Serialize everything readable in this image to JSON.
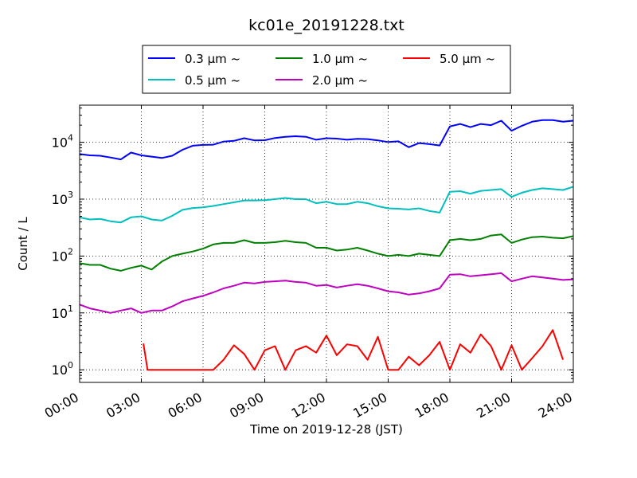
{
  "chart_data": {
    "type": "line",
    "title": "kc01e_20191228.txt",
    "xlabel": "Time on 2019-12-28 (JST)",
    "ylabel": "Count / L",
    "x_ticks": [
      "00:00",
      "03:00",
      "06:00",
      "09:00",
      "12:00",
      "15:00",
      "18:00",
      "21:00",
      "24:00"
    ],
    "xlim": [
      0,
      24
    ],
    "x_units": "hours",
    "y_scale": "log",
    "ylim": [
      0.6,
      45000
    ],
    "y_ticks": [
      {
        "value": 1,
        "base": "10",
        "exp": "0"
      },
      {
        "value": 10,
        "base": "10",
        "exp": "1"
      },
      {
        "value": 100,
        "base": "10",
        "exp": "2"
      },
      {
        "value": 1000,
        "base": "10",
        "exp": "3"
      },
      {
        "value": 10000,
        "base": "10",
        "exp": "4"
      }
    ],
    "grid": true,
    "legend_position": "top-center",
    "series": [
      {
        "name": "0.3 µm ~",
        "color": "#0000ff",
        "points": [
          [
            0,
            6200
          ],
          [
            0.5,
            5900
          ],
          [
            1,
            5800
          ],
          [
            1.5,
            5400
          ],
          [
            2,
            5000
          ],
          [
            2.5,
            6600
          ],
          [
            3,
            5900
          ],
          [
            3.5,
            5600
          ],
          [
            4,
            5300
          ],
          [
            4.5,
            5800
          ],
          [
            5,
            7400
          ],
          [
            5.5,
            8700
          ],
          [
            6,
            9000
          ],
          [
            6.5,
            9100
          ],
          [
            7,
            10300
          ],
          [
            7.5,
            10600
          ],
          [
            8,
            11800
          ],
          [
            8.5,
            10800
          ],
          [
            9,
            10900
          ],
          [
            9.5,
            11900
          ],
          [
            10,
            12500
          ],
          [
            10.5,
            12800
          ],
          [
            11,
            12500
          ],
          [
            11.5,
            11100
          ],
          [
            12,
            11800
          ],
          [
            12.5,
            11600
          ],
          [
            13,
            11100
          ],
          [
            13.5,
            11500
          ],
          [
            14,
            11400
          ],
          [
            14.5,
            10800
          ],
          [
            15,
            10100
          ],
          [
            15.5,
            10400
          ],
          [
            16,
            8200
          ],
          [
            16.5,
            9700
          ],
          [
            17,
            9300
          ],
          [
            17.5,
            8800
          ],
          [
            18,
            19000
          ],
          [
            18.5,
            21000
          ],
          [
            19,
            18500
          ],
          [
            19.5,
            21000
          ],
          [
            20,
            20000
          ],
          [
            20.5,
            24000
          ],
          [
            21,
            16000
          ],
          [
            21.5,
            19500
          ],
          [
            22,
            23000
          ],
          [
            22.5,
            24500
          ],
          [
            23,
            24500
          ],
          [
            23.5,
            23000
          ],
          [
            24,
            24000
          ]
        ]
      },
      {
        "name": "0.5 µm ~",
        "color": "#00bfbf",
        "points": [
          [
            0,
            480
          ],
          [
            0.5,
            440
          ],
          [
            1,
            450
          ],
          [
            1.5,
            410
          ],
          [
            2,
            390
          ],
          [
            2.5,
            480
          ],
          [
            3,
            500
          ],
          [
            3.5,
            440
          ],
          [
            4,
            420
          ],
          [
            4.5,
            510
          ],
          [
            5,
            650
          ],
          [
            5.5,
            700
          ],
          [
            6,
            720
          ],
          [
            6.5,
            760
          ],
          [
            7,
            820
          ],
          [
            7.5,
            880
          ],
          [
            8,
            950
          ],
          [
            8.5,
            950
          ],
          [
            9,
            960
          ],
          [
            9.5,
            1000
          ],
          [
            10,
            1050
          ],
          [
            10.5,
            1000
          ],
          [
            11,
            1000
          ],
          [
            11.5,
            850
          ],
          [
            12,
            900
          ],
          [
            12.5,
            820
          ],
          [
            13,
            820
          ],
          [
            13.5,
            900
          ],
          [
            14,
            850
          ],
          [
            14.5,
            750
          ],
          [
            15,
            690
          ],
          [
            15.5,
            680
          ],
          [
            16,
            660
          ],
          [
            16.5,
            690
          ],
          [
            17,
            620
          ],
          [
            17.5,
            580
          ],
          [
            18,
            1350
          ],
          [
            18.5,
            1380
          ],
          [
            19,
            1250
          ],
          [
            19.5,
            1400
          ],
          [
            20,
            1450
          ],
          [
            20.5,
            1500
          ],
          [
            21,
            1100
          ],
          [
            21.5,
            1300
          ],
          [
            22,
            1450
          ],
          [
            22.5,
            1550
          ],
          [
            23,
            1500
          ],
          [
            23.5,
            1450
          ],
          [
            24,
            1650
          ]
        ]
      },
      {
        "name": "1.0 µm ~",
        "color": "#008000",
        "points": [
          [
            0,
            75
          ],
          [
            0.5,
            70
          ],
          [
            1,
            70
          ],
          [
            1.5,
            60
          ],
          [
            2,
            55
          ],
          [
            2.5,
            62
          ],
          [
            3,
            68
          ],
          [
            3.5,
            58
          ],
          [
            4,
            80
          ],
          [
            4.5,
            100
          ],
          [
            5,
            110
          ],
          [
            5.5,
            120
          ],
          [
            6,
            135
          ],
          [
            6.5,
            160
          ],
          [
            7,
            170
          ],
          [
            7.5,
            170
          ],
          [
            8,
            190
          ],
          [
            8.5,
            170
          ],
          [
            9,
            170
          ],
          [
            9.5,
            175
          ],
          [
            10,
            185
          ],
          [
            10.5,
            175
          ],
          [
            11,
            170
          ],
          [
            11.5,
            140
          ],
          [
            12,
            140
          ],
          [
            12.5,
            125
          ],
          [
            13,
            130
          ],
          [
            13.5,
            140
          ],
          [
            14,
            125
          ],
          [
            14.5,
            110
          ],
          [
            15,
            100
          ],
          [
            15.5,
            105
          ],
          [
            16,
            100
          ],
          [
            16.5,
            110
          ],
          [
            17,
            105
          ],
          [
            17.5,
            100
          ],
          [
            18,
            190
          ],
          [
            18.5,
            200
          ],
          [
            19,
            190
          ],
          [
            19.5,
            200
          ],
          [
            20,
            230
          ],
          [
            20.5,
            240
          ],
          [
            21,
            170
          ],
          [
            21.5,
            195
          ],
          [
            22,
            215
          ],
          [
            22.5,
            220
          ],
          [
            23,
            210
          ],
          [
            23.5,
            205
          ],
          [
            24,
            225
          ]
        ]
      },
      {
        "name": "2.0 µm ~",
        "color": "#bf00bf",
        "points": [
          [
            0,
            14
          ],
          [
            0.5,
            12
          ],
          [
            1,
            11
          ],
          [
            1.5,
            10
          ],
          [
            2,
            11
          ],
          [
            2.5,
            12
          ],
          [
            3,
            10
          ],
          [
            3.5,
            11
          ],
          [
            4,
            11
          ],
          [
            4.5,
            13
          ],
          [
            5,
            16
          ],
          [
            5.5,
            18
          ],
          [
            6,
            20
          ],
          [
            6.5,
            23
          ],
          [
            7,
            27
          ],
          [
            7.5,
            30
          ],
          [
            8,
            34
          ],
          [
            8.5,
            33
          ],
          [
            9,
            35
          ],
          [
            9.5,
            36
          ],
          [
            10,
            37
          ],
          [
            10.5,
            35
          ],
          [
            11,
            34
          ],
          [
            11.5,
            30
          ],
          [
            12,
            31
          ],
          [
            12.5,
            28
          ],
          [
            13,
            30
          ],
          [
            13.5,
            32
          ],
          [
            14,
            30
          ],
          [
            14.5,
            27
          ],
          [
            15,
            24
          ],
          [
            15.5,
            23
          ],
          [
            16,
            21
          ],
          [
            16.5,
            22
          ],
          [
            17,
            24
          ],
          [
            17.5,
            27
          ],
          [
            18,
            47
          ],
          [
            18.5,
            48
          ],
          [
            19,
            44
          ],
          [
            19.5,
            46
          ],
          [
            20,
            48
          ],
          [
            20.5,
            50
          ],
          [
            21,
            36
          ],
          [
            21.5,
            40
          ],
          [
            22,
            44
          ],
          [
            22.5,
            42
          ],
          [
            23,
            40
          ],
          [
            23.5,
            38
          ],
          [
            24,
            39
          ]
        ]
      },
      {
        "name": "5.0 µm ~",
        "color": "#ff0000",
        "points": [
          [
            3.1,
            2.9
          ],
          [
            3.3,
            1
          ],
          [
            3.6,
            1
          ],
          [
            4.0,
            1
          ],
          [
            4.6,
            1
          ],
          [
            5.5,
            1
          ],
          [
            6,
            1
          ],
          [
            6.5,
            1
          ],
          [
            7,
            1.5
          ],
          [
            7.5,
            2.7
          ],
          [
            8,
            1.9
          ],
          [
            8.5,
            1
          ],
          [
            9,
            2.2
          ],
          [
            9.5,
            2.6
          ],
          [
            10,
            1
          ],
          [
            10.5,
            2.2
          ],
          [
            11,
            2.6
          ],
          [
            11.5,
            2.0
          ],
          [
            12,
            4.0
          ],
          [
            12.5,
            1.8
          ],
          [
            13,
            2.8
          ],
          [
            13.5,
            2.6
          ],
          [
            14,
            1.5
          ],
          [
            14.5,
            3.8
          ],
          [
            15,
            1
          ],
          [
            15.5,
            1
          ],
          [
            16,
            1.7
          ],
          [
            16.5,
            1.2
          ],
          [
            17,
            1.8
          ],
          [
            17.5,
            3.1
          ],
          [
            18,
            1
          ],
          [
            18.5,
            2.8
          ],
          [
            19,
            2.0
          ],
          [
            19.5,
            4.2
          ],
          [
            20,
            2.6
          ],
          [
            20.5,
            1
          ],
          [
            21,
            2.7
          ],
          [
            21.5,
            1
          ],
          [
            22,
            1.6
          ],
          [
            22.5,
            2.6
          ],
          [
            23,
            5.0
          ],
          [
            23.5,
            1.5
          ]
        ]
      }
    ]
  }
}
